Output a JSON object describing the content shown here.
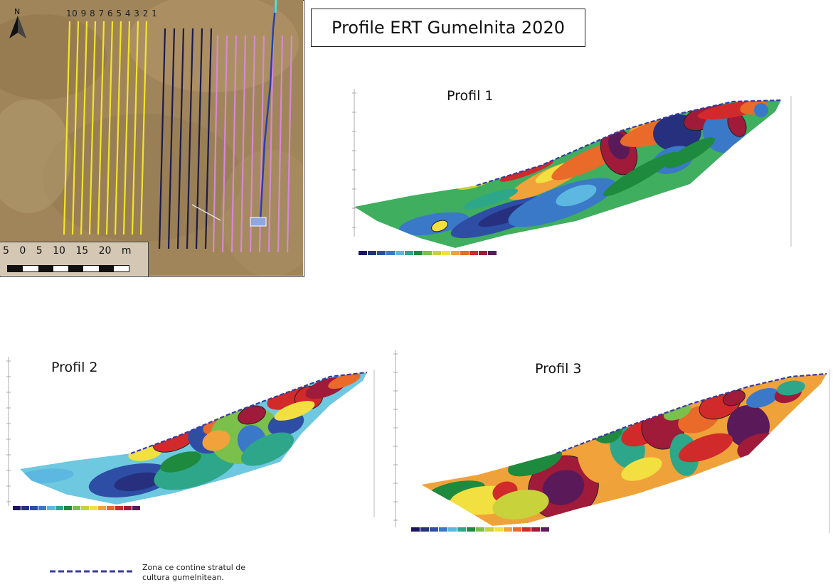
{
  "title": "Profile ERT Gumelnita 2020",
  "map": {
    "north_label": "N",
    "line_numbers": "10 9 8 7 6 5 4 3  2 1",
    "scale_labels": "5  0  5  10  15  20 m",
    "colors": {
      "terrain": "#a0855a",
      "yellow_lines": "#f2e52a",
      "navy_lines": "#1e1a4a",
      "pink_lines": "#d68ad0",
      "blue_line": "#2a3fb0",
      "cyan_marker": "#58e0d0",
      "survey_box": "#8fa6e0"
    }
  },
  "profiles": [
    {
      "title": "Profil 1"
    },
    {
      "title": "Profil 2"
    },
    {
      "title": "Profil 3"
    }
  ],
  "resistivity_colors": [
    "#1b1464",
    "#26307e",
    "#2e4ea6",
    "#3a78c8",
    "#5cb8e0",
    "#2ea68a",
    "#1e8a3e",
    "#7ac04a",
    "#c8d23a",
    "#f2e040",
    "#f2a23a",
    "#ea6a2a",
    "#d02a2a",
    "#a01a3a",
    "#5a1a5a"
  ],
  "legend": {
    "text_line1": "Zona ce contine stratul de",
    "text_line2": "cultura gumelnitean.",
    "line_color": "#3a3aa0"
  }
}
